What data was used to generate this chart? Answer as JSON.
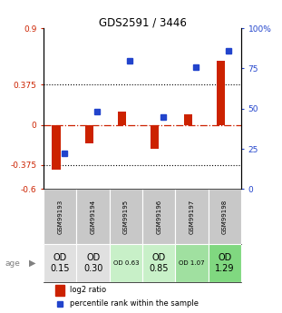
{
  "title": "GDS2591 / 3446",
  "samples": [
    "GSM99193",
    "GSM99194",
    "GSM99195",
    "GSM99196",
    "GSM99197",
    "GSM99198"
  ],
  "log2_ratio": [
    -0.42,
    -0.17,
    0.12,
    -0.22,
    0.1,
    0.6
  ],
  "percentile": [
    22,
    48,
    80,
    45,
    76,
    86
  ],
  "ylim_left": [
    -0.6,
    0.9
  ],
  "ylim_right": [
    0,
    100
  ],
  "yticks_left": [
    -0.6,
    -0.375,
    0,
    0.375,
    0.9
  ],
  "yticks_right": [
    0,
    25,
    50,
    75,
    100
  ],
  "ytick_labels_left": [
    "-0.6",
    "-0.375",
    "0",
    "0.375",
    "0.9"
  ],
  "ytick_labels_right": [
    "0",
    "25",
    "50",
    "75",
    "100%"
  ],
  "hlines": [
    0.375,
    -0.375
  ],
  "bar_color_log2": "#cc2200",
  "bar_color_pct": "#2244cc",
  "bar_width": 0.25,
  "age_labels": [
    "OD\n0.15",
    "OD\n0.30",
    "OD 0.63",
    "OD\n0.85",
    "OD 1.07",
    "OD\n1.29"
  ],
  "age_bg_colors": [
    "#e0e0e0",
    "#e0e0e0",
    "#c8f0c8",
    "#c8f0c8",
    "#a0e0a0",
    "#80d880"
  ],
  "age_fontsize_large": [
    true,
    true,
    false,
    true,
    false,
    true
  ],
  "sample_bg_color": "#c8c8c8",
  "legend_log2_label": "log2 ratio",
  "legend_pct_label": "percentile rank within the sample"
}
